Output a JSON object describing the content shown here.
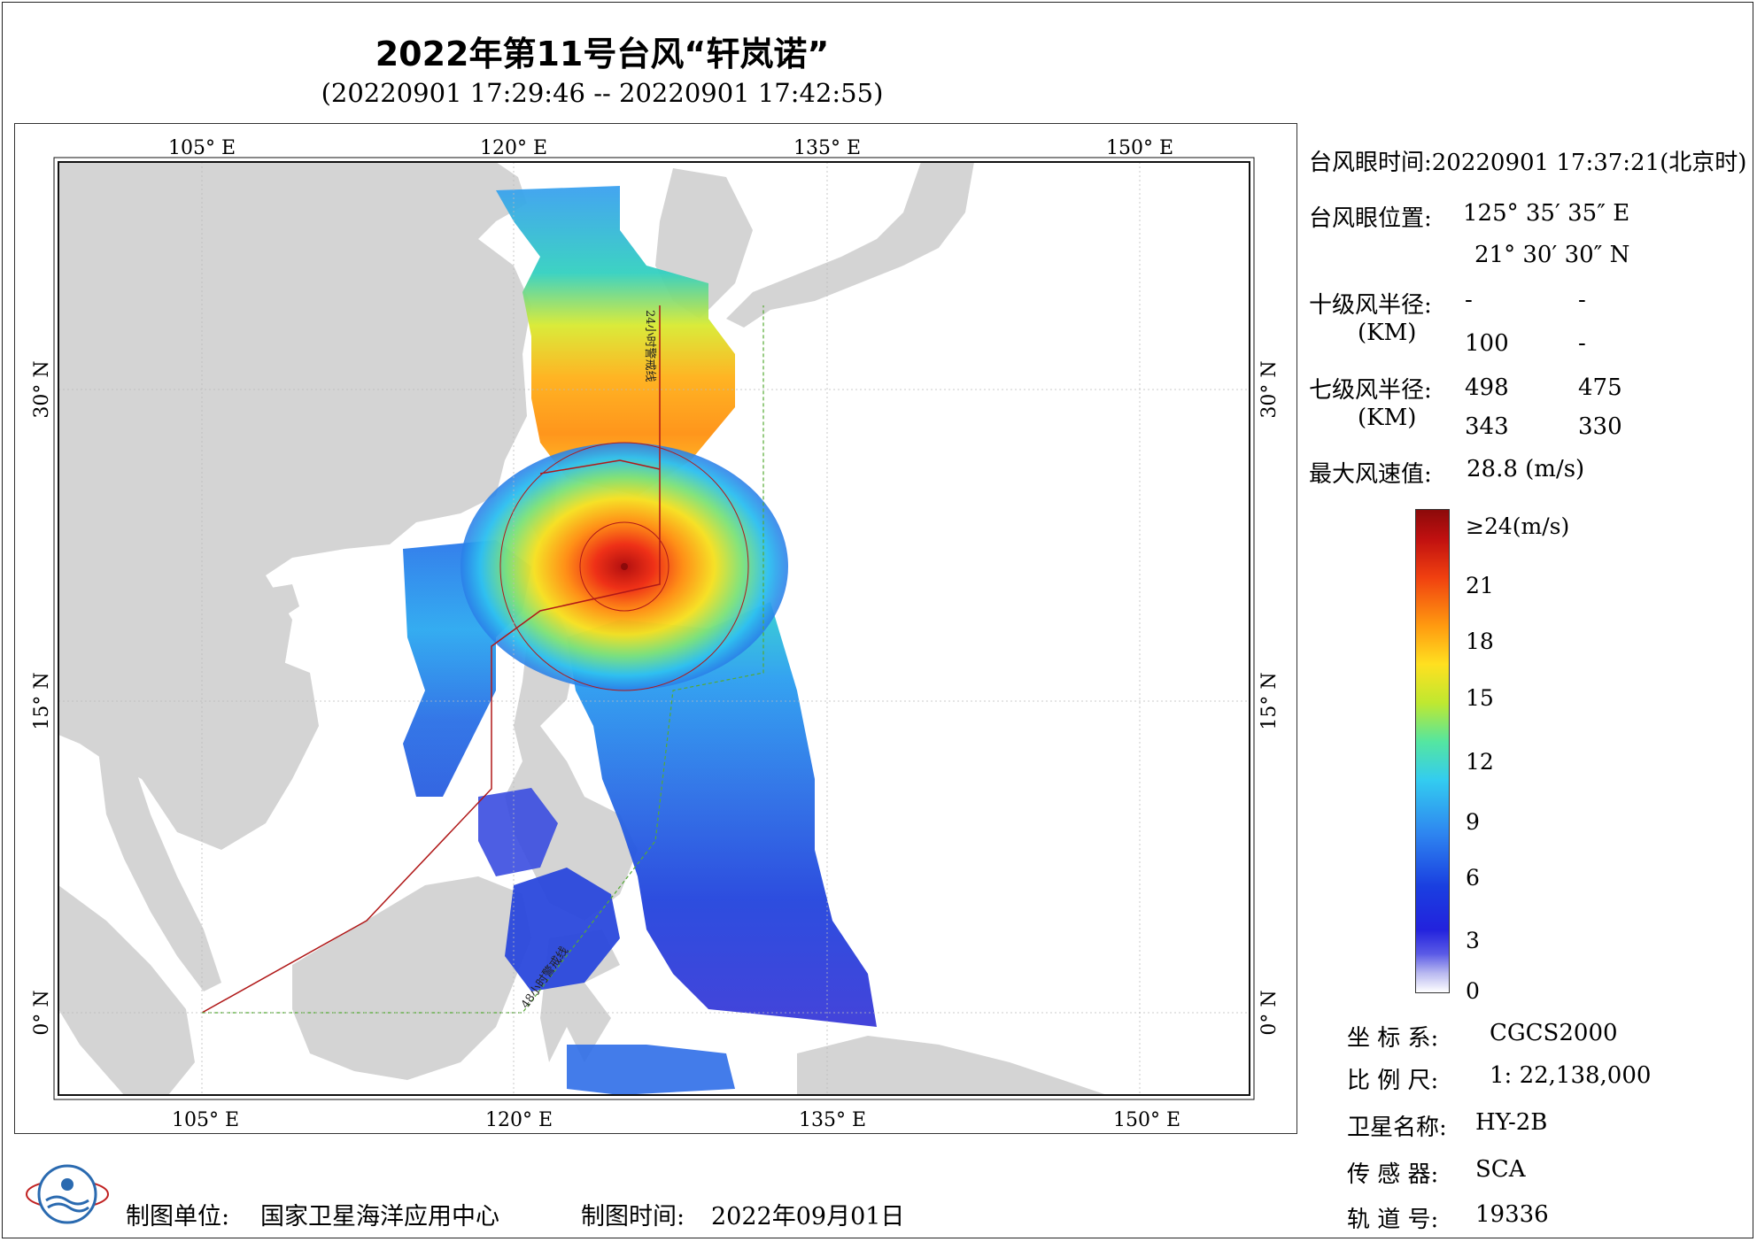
{
  "title": "2022年第11号台风“轩岚诺”",
  "subtitle": "(20220901 17:29:46 -- 20220901 17:42:55)",
  "map": {
    "lon_ticks": [
      "105° E",
      "120° E",
      "135° E",
      "150° E"
    ],
    "lat_ticks": [
      "30° N",
      "15° N",
      "0° N"
    ],
    "track_label_north": "24小时警戒线",
    "track_label_south": "48小时警戒线",
    "colors": {
      "land": "#d4d4d4",
      "sea": "#ffffff",
      "warning_line": "#cc2222",
      "alt_line": "#55aa33"
    }
  },
  "info": {
    "eye_time_label": "台风眼时间:",
    "eye_time_value": "20220901 17:37:21(北京时)",
    "eye_pos_label": "台风眼位置:",
    "eye_lon": "125° 35′ 35″ E",
    "eye_lat": "21° 30′ 30″ N",
    "r10_label": "十级风半径:",
    "r10_unit": "(KM)",
    "r10_values": [
      "-",
      "-",
      "100",
      "-"
    ],
    "r7_label": "七级风半径:",
    "r7_unit": "(KM)",
    "r7_values": [
      "498",
      "475",
      "343",
      "330"
    ],
    "max_wind_label": "最大风速值:",
    "max_wind_value": "28.8  (m/s)"
  },
  "colorbar": {
    "ticks": [
      "≥24(m/s)",
      "21",
      "18",
      "15",
      "12",
      "9",
      "6",
      "3",
      "0"
    ]
  },
  "meta": {
    "crs_label": "坐 标 系:",
    "crs_value": "CGCS2000",
    "scale_label": "比 例 尺:",
    "scale_value": "1: 22,138,000",
    "satellite_label": "卫星名称:",
    "satellite_value": "HY-2B",
    "sensor_label": "传 感 器:",
    "sensor_value": "SCA",
    "orbit_label": "轨 道 号:",
    "orbit_value": "19336"
  },
  "footer": {
    "org_label": "制图单位:",
    "org_value": "国家卫星海洋应用中心",
    "date_label": "制图时间:",
    "date_value": "2022年09月01日"
  }
}
